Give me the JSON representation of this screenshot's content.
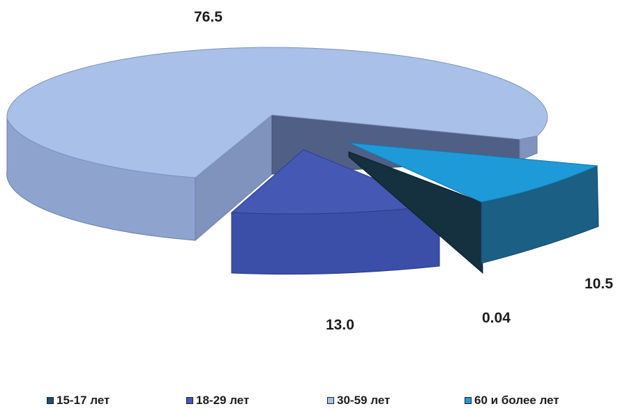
{
  "chart_data": {
    "type": "pie",
    "style": "3d-exploded",
    "title": "",
    "slices": [
      {
        "label": "15-17 лет",
        "value": 0.04,
        "value_label": "0.04",
        "color": "#1f4f6b"
      },
      {
        "label": "18-29 лет",
        "value": 13.0,
        "value_label": "13.0",
        "color": "#4558b4"
      },
      {
        "label": "30-59 лет",
        "value": 76.5,
        "value_label": "76.5",
        "color": "#a9c0e8"
      },
      {
        "label": "60 и более лет",
        "value": 10.5,
        "value_label": "10.5",
        "color": "#1f9ad8"
      }
    ],
    "legend_position": "bottom"
  }
}
